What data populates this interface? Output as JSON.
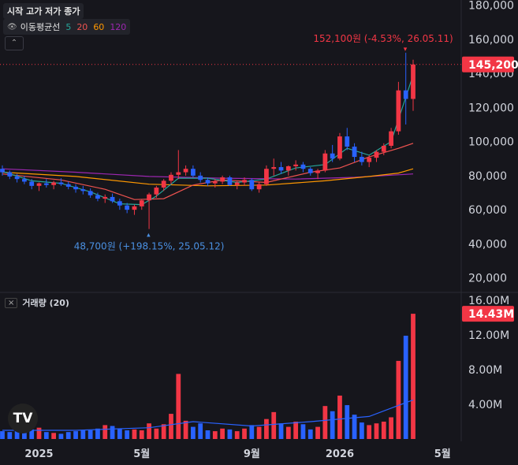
{
  "header": {
    "ohlc_label": "시작 고가 저가 종가",
    "ma_label": "이동평균선",
    "ma_periods": [
      {
        "value": "5",
        "color": "#26a69a"
      },
      {
        "value": "20",
        "color": "#ef5350"
      },
      {
        "value": "60",
        "color": "#ff9800"
      },
      {
        "value": "120",
        "color": "#9c27b0"
      }
    ],
    "collapse_icon": "chevron-up-icon",
    "volume_label": "거래량 (20)"
  },
  "logo_text": "TV",
  "colors": {
    "up": "#f23645",
    "down": "#2962ff",
    "price_tag": "#f23645",
    "low_note": "#4a90e2"
  },
  "chart_data": {
    "type": "candlestick",
    "price_axis": {
      "ticks": [
        "180,000",
        "160,000",
        "140,000",
        "120,000",
        "100,000",
        "80,000",
        "60,000",
        "40,000",
        "20,000"
      ],
      "range": [
        12000,
        183000
      ]
    },
    "volume_axis": {
      "ticks": [
        "16.00M",
        "12.00M",
        "8.00M",
        "4.00M"
      ],
      "range": [
        0,
        16800000
      ]
    },
    "x_labels": [
      "2025",
      "5월",
      "9월",
      "2026",
      "5월"
    ],
    "current_price": "145,200",
    "current_volume": "14.43M",
    "high_annotation": "152,100원 (-4.53%, 26.05.11)",
    "low_annotation": "48,700원 (+198.15%, 25.05.12)",
    "series_note": "approximate weekly candles read from the chart",
    "candles": [
      [
        84000,
        86000,
        80000,
        82000,
        0.9
      ],
      [
        82000,
        83000,
        78000,
        79500,
        0.8
      ],
      [
        79500,
        81000,
        76000,
        78000,
        0.9
      ],
      [
        78000,
        80000,
        75000,
        76500,
        1.0
      ],
      [
        76500,
        78000,
        72000,
        74000,
        1.1
      ],
      [
        74000,
        76000,
        71000,
        75500,
        1.3
      ],
      [
        75500,
        78000,
        73000,
        74500,
        0.8
      ],
      [
        74500,
        77000,
        72000,
        76000,
        0.7
      ],
      [
        76000,
        78500,
        74000,
        75000,
        0.6
      ],
      [
        75000,
        76500,
        72000,
        73500,
        0.8
      ],
      [
        73500,
        75000,
        70000,
        72000,
        0.9
      ],
      [
        72000,
        74000,
        69000,
        71000,
        1.0
      ],
      [
        71000,
        72500,
        67000,
        68500,
        1.0
      ],
      [
        68500,
        70000,
        65000,
        66500,
        1.2
      ],
      [
        66500,
        69000,
        64000,
        67500,
        1.6
      ],
      [
        67500,
        69500,
        64000,
        65000,
        1.5
      ],
      [
        65000,
        66500,
        60000,
        62500,
        1.2
      ],
      [
        62500,
        64000,
        58000,
        60000,
        1.0
      ],
      [
        60000,
        63000,
        57000,
        62000,
        1.1
      ],
      [
        62000,
        66000,
        60000,
        65500,
        1.0
      ],
      [
        65500,
        70000,
        48700,
        69000,
        1.8
      ],
      [
        69000,
        74000,
        67000,
        73000,
        1.2
      ],
      [
        73000,
        78000,
        71000,
        77000,
        1.7
      ],
      [
        77000,
        82000,
        75000,
        80500,
        2.9
      ],
      [
        80500,
        95000,
        78000,
        82000,
        7.5
      ],
      [
        82000,
        86000,
        80000,
        84000,
        2.1
      ],
      [
        84000,
        86000,
        79000,
        80000,
        1.4
      ],
      [
        80000,
        82000,
        76000,
        77500,
        1.8
      ],
      [
        77500,
        79000,
        74000,
        75500,
        1.0
      ],
      [
        75500,
        78000,
        73000,
        76500,
        0.9
      ],
      [
        76500,
        80000,
        75000,
        79000,
        1.2
      ],
      [
        79000,
        80000,
        74000,
        74500,
        1.1
      ],
      [
        74500,
        77000,
        72000,
        76000,
        0.9
      ],
      [
        76000,
        79000,
        74000,
        77500,
        1.2
      ],
      [
        77500,
        78500,
        71000,
        72000,
        1.6
      ],
      [
        72000,
        76000,
        70000,
        75000,
        1.4
      ],
      [
        75000,
        86000,
        74000,
        84000,
        2.3
      ],
      [
        84000,
        90000,
        80000,
        85000,
        3.1
      ],
      [
        85000,
        88000,
        81000,
        83000,
        1.8
      ],
      [
        83000,
        86000,
        80000,
        85500,
        1.4
      ],
      [
        85500,
        89000,
        83000,
        86500,
        2.0
      ],
      [
        86500,
        88000,
        82000,
        84000,
        1.7
      ],
      [
        84000,
        85000,
        80000,
        81500,
        1.1
      ],
      [
        81500,
        84000,
        78000,
        83000,
        1.4
      ],
      [
        83000,
        95000,
        82000,
        93000,
        3.8
      ],
      [
        93000,
        98000,
        88000,
        90000,
        3.2
      ],
      [
        90000,
        105000,
        89000,
        103000,
        5.0
      ],
      [
        103000,
        108000,
        95000,
        97000,
        3.9
      ],
      [
        97000,
        99000,
        88000,
        91000,
        2.8
      ],
      [
        91000,
        94000,
        86000,
        88000,
        1.9
      ],
      [
        88000,
        92000,
        85000,
        90500,
        1.6
      ],
      [
        90500,
        95000,
        88000,
        94000,
        1.8
      ],
      [
        94000,
        99000,
        92000,
        97500,
        2.0
      ],
      [
        97500,
        108000,
        96000,
        106000,
        2.5
      ],
      [
        106000,
        135000,
        104000,
        130000,
        9.0
      ],
      [
        130000,
        152100,
        110000,
        125000,
        11.9
      ],
      [
        125000,
        148000,
        118000,
        145200,
        14.43
      ]
    ],
    "ma5": [
      [
        0,
        82500
      ],
      [
        4,
        77000
      ],
      [
        8,
        75500
      ],
      [
        12,
        70500
      ],
      [
        16,
        63500
      ],
      [
        19,
        63000
      ],
      [
        21,
        68000
      ],
      [
        24,
        78500
      ],
      [
        28,
        78500
      ],
      [
        32,
        76000
      ],
      [
        36,
        78000
      ],
      [
        40,
        84500
      ],
      [
        44,
        86500
      ],
      [
        47,
        96000
      ],
      [
        50,
        92000
      ],
      [
        53,
        100000
      ],
      [
        56,
        139000
      ]
    ],
    "ma20": [
      [
        0,
        81000
      ],
      [
        8,
        77500
      ],
      [
        14,
        72000
      ],
      [
        18,
        66000
      ],
      [
        22,
        66500
      ],
      [
        26,
        74500
      ],
      [
        30,
        77500
      ],
      [
        36,
        76000
      ],
      [
        42,
        82000
      ],
      [
        46,
        84500
      ],
      [
        50,
        91000
      ],
      [
        54,
        96000
      ],
      [
        56,
        99000
      ]
    ],
    "ma60": [
      [
        0,
        82000
      ],
      [
        10,
        79500
      ],
      [
        20,
        75000
      ],
      [
        28,
        74000
      ],
      [
        36,
        74500
      ],
      [
        44,
        77000
      ],
      [
        50,
        79500
      ],
      [
        54,
        81500
      ],
      [
        56,
        84000
      ]
    ],
    "ma120": [
      [
        0,
        84000
      ],
      [
        10,
        82000
      ],
      [
        20,
        79500
      ],
      [
        30,
        78500
      ],
      [
        40,
        78000
      ],
      [
        48,
        79000
      ],
      [
        56,
        81000
      ]
    ],
    "vol_ma": [
      [
        0,
        1.0
      ],
      [
        10,
        1.0
      ],
      [
        20,
        1.3
      ],
      [
        26,
        2.0
      ],
      [
        34,
        1.5
      ],
      [
        42,
        2.0
      ],
      [
        50,
        2.6
      ],
      [
        56,
        4.5
      ]
    ]
  }
}
